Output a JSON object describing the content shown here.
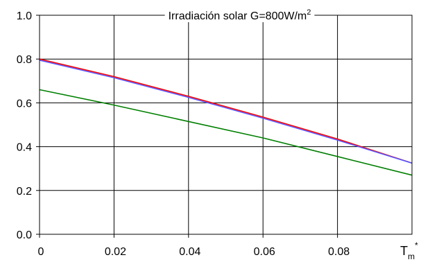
{
  "chart_data": {
    "type": "line",
    "title": "Irradiación solar G=800W/m",
    "title_superscript": "2",
    "xlabel": "T",
    "xlabel_subscript": "m",
    "xlabel_superscript": "*",
    "ylabel": "",
    "xlim": [
      0,
      0.1
    ],
    "ylim": [
      0.0,
      1.0
    ],
    "x_ticks": [
      "0",
      "0.02",
      "0.04",
      "0.06",
      "0.08"
    ],
    "y_ticks": [
      "0.0",
      "0.2",
      "0.4",
      "0.6",
      "0.8",
      "1.0"
    ],
    "x_tick_values": [
      0,
      0.02,
      0.04,
      0.06,
      0.08
    ],
    "y_tick_values": [
      0.0,
      0.2,
      0.4,
      0.6,
      0.8,
      1.0
    ],
    "grid": true,
    "series": [
      {
        "color": "#ff0000",
        "x": [
          0,
          0.02,
          0.04,
          0.06,
          0.08,
          0.1
        ],
        "y": [
          0.8,
          0.72,
          0.63,
          0.535,
          0.435,
          0.325
        ]
      },
      {
        "color": "#5555ff",
        "x": [
          0,
          0.02,
          0.04,
          0.06,
          0.08,
          0.1
        ],
        "y": [
          0.795,
          0.715,
          0.625,
          0.53,
          0.43,
          0.325
        ]
      },
      {
        "color": "#008000",
        "x": [
          0,
          0.02,
          0.04,
          0.06,
          0.08,
          0.1
        ],
        "y": [
          0.66,
          0.59,
          0.515,
          0.44,
          0.355,
          0.27
        ]
      }
    ]
  }
}
